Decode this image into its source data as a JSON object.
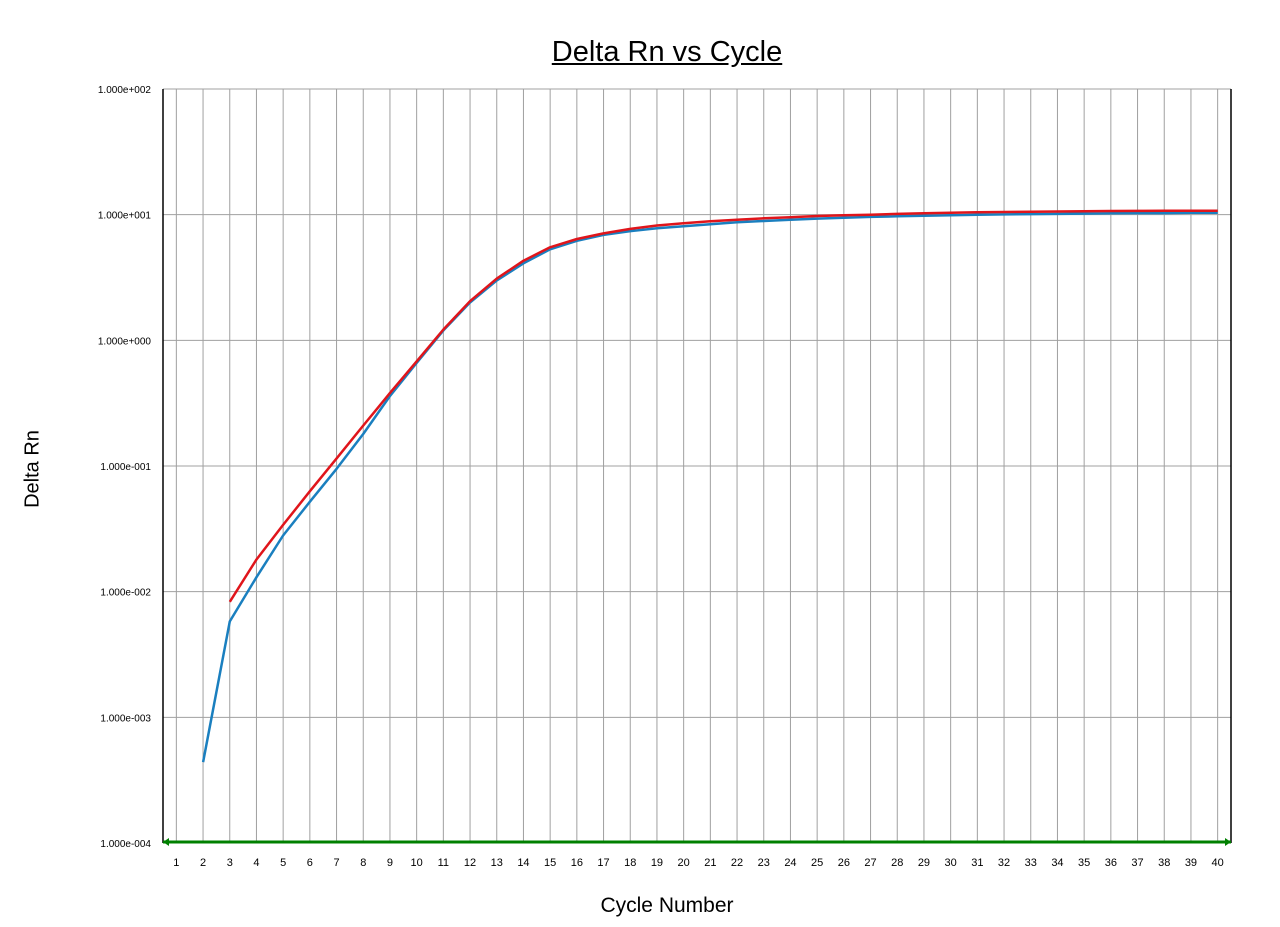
{
  "chart_data": {
    "type": "line",
    "title": "Delta Rn vs Cycle",
    "xlabel": "Cycle Number",
    "ylabel": "Delta Rn",
    "yscale": "log",
    "ylim": [
      0.0001,
      100
    ],
    "xlim": [
      0.5,
      40.5
    ],
    "grid": true,
    "legend": "none",
    "x_ticks": [
      "1",
      "2",
      "3",
      "4",
      "5",
      "6",
      "7",
      "8",
      "9",
      "10",
      "11",
      "12",
      "13",
      "14",
      "15",
      "16",
      "17",
      "18",
      "19",
      "20",
      "21",
      "22",
      "23",
      "24",
      "25",
      "26",
      "27",
      "28",
      "29",
      "30",
      "31",
      "32",
      "33",
      "34",
      "35",
      "36",
      "37",
      "38",
      "39",
      "40"
    ],
    "y_ticks": [
      "1.000e+002",
      "1.000e+001",
      "1.000e+000",
      "1.000e-001",
      "1.000e-002",
      "1.000e-003",
      "1.000e-004"
    ],
    "y_tick_values": [
      100,
      10,
      1,
      0.1,
      0.01,
      0.001,
      0.0001
    ],
    "threshold": 0.0001,
    "series": [
      {
        "color": "#1a7fbf",
        "x": [
          2,
          3,
          4,
          5,
          6,
          7,
          8,
          9,
          10,
          11,
          12,
          13,
          14,
          15,
          16,
          17,
          18,
          19,
          20,
          21,
          22,
          23,
          24,
          25,
          26,
          27,
          28,
          29,
          30,
          31,
          32,
          33,
          34,
          35,
          36,
          37,
          38,
          39,
          40
        ],
        "y": [
          0.00044,
          0.0058,
          0.013,
          0.028,
          0.052,
          0.095,
          0.18,
          0.36,
          0.66,
          1.2,
          2.0,
          3.0,
          4.1,
          5.3,
          6.2,
          6.9,
          7.4,
          7.8,
          8.1,
          8.4,
          8.7,
          8.9,
          9.1,
          9.3,
          9.45,
          9.6,
          9.7,
          9.8,
          9.9,
          10.0,
          10.05,
          10.1,
          10.15,
          10.2,
          10.25,
          10.3,
          10.3,
          10.35,
          10.35
        ]
      },
      {
        "color": "#e0151b",
        "x": [
          3,
          4,
          5,
          6,
          7,
          8,
          9,
          10,
          11,
          12,
          13,
          14,
          15,
          16,
          17,
          18,
          19,
          20,
          21,
          22,
          23,
          24,
          25,
          26,
          27,
          28,
          29,
          30,
          31,
          32,
          33,
          34,
          35,
          36,
          37,
          38,
          39,
          40
        ],
        "y": [
          0.0083,
          0.018,
          0.034,
          0.063,
          0.115,
          0.21,
          0.38,
          0.68,
          1.22,
          2.05,
          3.1,
          4.3,
          5.5,
          6.4,
          7.1,
          7.7,
          8.2,
          8.55,
          8.85,
          9.1,
          9.35,
          9.55,
          9.75,
          9.9,
          10.0,
          10.15,
          10.25,
          10.35,
          10.45,
          10.5,
          10.55,
          10.6,
          10.65,
          10.7,
          10.72,
          10.74,
          10.75,
          10.76
        ]
      }
    ],
    "colors": {
      "grid": "#a0a0a0",
      "axis": "#000000",
      "threshold": "#008000"
    }
  }
}
